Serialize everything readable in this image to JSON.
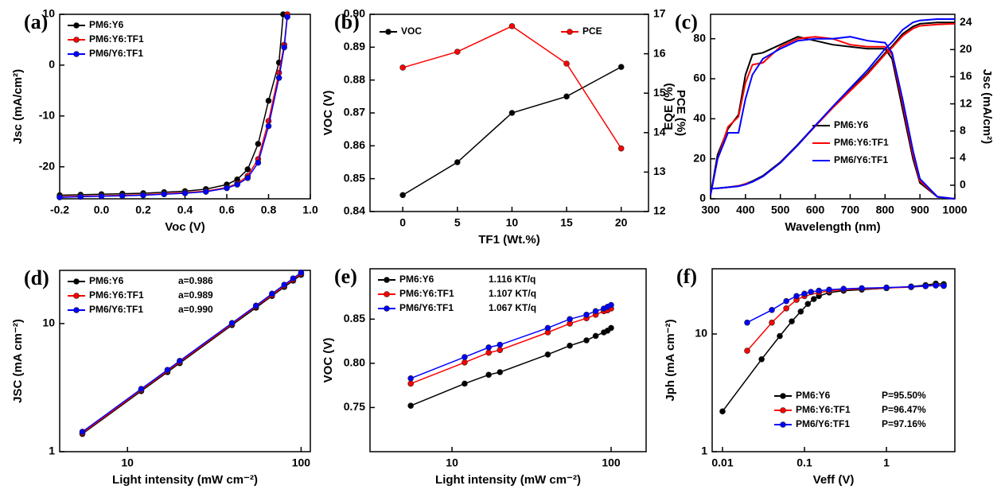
{
  "chart_data": [
    {
      "type": "line",
      "panel": "(a)",
      "xlabel": "Voc (V)",
      "ylabel": "Jsc (mA/cm²)",
      "markers": true,
      "legend": "upper left",
      "xlim": [
        -0.2,
        1.0
      ],
      "ylim": [
        -26.3,
        10
      ],
      "xticks": [
        -0.2,
        {
          "value": 0,
          "label": "0.0"
        },
        0.2,
        0.4,
        0.6,
        0.8,
        {
          "value": 1,
          "label": "1.0"
        }
      ],
      "yticks": [
        -20,
        -10,
        0,
        10
      ],
      "series": [
        {
          "name": "PM6:Y6",
          "color": "#000000",
          "x": [
            -0.2,
            -0.1,
            0,
            0.1,
            0.2,
            0.3,
            0.4,
            0.5,
            0.6,
            0.65,
            0.7,
            0.75,
            0.8,
            0.85,
            0.87
          ],
          "values": [
            -25.6,
            -25.5,
            -25.4,
            -25.3,
            -25.2,
            -25.0,
            -24.8,
            -24.4,
            -23.5,
            -22.5,
            -20.5,
            -15.5,
            -7,
            0.5,
            10
          ]
        },
        {
          "name": "PM6:Y6:TF1",
          "color": "#ff0000",
          "x": [
            -0.2,
            -0.1,
            0,
            0.1,
            0.2,
            0.3,
            0.4,
            0.5,
            0.6,
            0.65,
            0.7,
            0.75,
            0.8,
            0.85,
            0.875,
            0.89
          ],
          "values": [
            -25.9,
            -25.8,
            -25.7,
            -25.6,
            -25.5,
            -25.3,
            -25.1,
            -24.8,
            -24.1,
            -23.3,
            -21.8,
            -18.5,
            -11,
            -1.5,
            4,
            10
          ]
        },
        {
          "name": "PM6/Y6:TF1",
          "color": "#0000ff",
          "x": [
            -0.2,
            -0.1,
            0,
            0.1,
            0.2,
            0.3,
            0.4,
            0.5,
            0.6,
            0.65,
            0.7,
            0.75,
            0.8,
            0.85,
            0.875,
            0.89
          ],
          "values": [
            -26.0,
            -25.9,
            -25.8,
            -25.7,
            -25.6,
            -25.4,
            -25.2,
            -24.9,
            -24.2,
            -23.5,
            -22.2,
            -19.2,
            -12,
            -2.5,
            3.5,
            9.5
          ]
        }
      ]
    },
    {
      "type": "line",
      "panel": "(b)",
      "xlabel": "TF1 (Wt.%)",
      "ylabel": "VOC (V)",
      "y2label": "PCE (%)",
      "markers": true,
      "legend": "top",
      "x": [
        0,
        5,
        10,
        15,
        20
      ],
      "xlim": [
        -3,
        22.5
      ],
      "ylim": [
        0.84,
        0.9
      ],
      "y2lim": [
        12,
        17
      ],
      "xticks": [
        0,
        5,
        10,
        15,
        20
      ],
      "yticks": [
        0.84,
        0.85,
        0.86,
        0.87,
        0.88,
        0.89,
        {
          "value": 0.9,
          "label": "0.90"
        }
      ],
      "y2ticks": [
        12,
        13,
        14,
        15,
        16,
        17
      ],
      "series": [
        {
          "name": "VOC",
          "color": "#000000",
          "values": [
            0.845,
            0.855,
            0.87,
            0.875,
            0.884
          ]
        },
        {
          "name": "PCE",
          "color": "#ff0000",
          "axis": "y2",
          "values": [
            15.65,
            16.05,
            16.7,
            15.75,
            13.6
          ]
        }
      ]
    },
    {
      "type": "line",
      "panel": "(c)",
      "xlabel": "Wavelength (nm)",
      "ylabel": "EQE (%)",
      "y2label": "Jsc (mA/cm²)",
      "markers": false,
      "legend": "center right",
      "x": [
        300,
        320,
        350,
        380,
        400,
        420,
        450,
        500,
        550,
        600,
        650,
        700,
        750,
        800,
        820,
        850,
        880,
        900,
        950,
        1000
      ],
      "xlim": [
        300,
        1000
      ],
      "ylim": [
        0,
        92.2
      ],
      "y2lim": [
        -2,
        25.2
      ],
      "xticks": [
        300,
        400,
        500,
        600,
        700,
        800,
        900,
        1000
      ],
      "yticks": [
        0,
        20,
        40,
        60,
        80
      ],
      "y2ticks": [
        0,
        4,
        8,
        12,
        16,
        20,
        24
      ],
      "series": [
        {
          "name": "PM6:Y6",
          "color": "#000000",
          "values": [
            2,
            22,
            35,
            42,
            62,
            72,
            73,
            77,
            81,
            79,
            77,
            76,
            75,
            75,
            70,
            45,
            20,
            8,
            1,
            0
          ],
          "jsc": [
            -0.5,
            -0.45,
            -0.3,
            -0.1,
            0.2,
            0.6,
            1.4,
            3.4,
            6,
            8.8,
            11.5,
            14,
            16.6,
            19.5,
            20.5,
            22.3,
            23.4,
            23.8,
            24,
            24
          ]
        },
        {
          "name": "PM6:Y6:TF1",
          "color": "#ff0000",
          "values": [
            2,
            20,
            36,
            41,
            58,
            67,
            68,
            76,
            80,
            81,
            80,
            77,
            76,
            76,
            72,
            48,
            22,
            9,
            1,
            0
          ],
          "jsc": [
            -0.5,
            -0.45,
            -0.3,
            -0.1,
            0.2,
            0.5,
            1.3,
            3.3,
            5.9,
            8.7,
            11.4,
            13.9,
            16.4,
            19.3,
            20.3,
            22,
            23.1,
            23.5,
            23.7,
            23.8
          ]
        },
        {
          "name": "PM6/Y6:TF1",
          "color": "#0000ff",
          "values": [
            2,
            20,
            33,
            33,
            50,
            62,
            70,
            75,
            79,
            80,
            80,
            81,
            79,
            78,
            73,
            50,
            24,
            10,
            1,
            0
          ],
          "jsc": [
            -0.5,
            -0.45,
            -0.3,
            -0.15,
            0.1,
            0.5,
            1.3,
            3.3,
            5.9,
            8.8,
            11.6,
            14.3,
            17,
            20.1,
            21.1,
            22.9,
            24,
            24.3,
            24.5,
            24.5
          ]
        }
      ]
    },
    {
      "type": "line",
      "panel": "(d)",
      "xlabel": "Light intensity (mW cm⁻²)",
      "ylabel": "JSC (mA cm⁻²)",
      "markers": true,
      "legend": "upper left",
      "xscale": "log",
      "yscale": "log",
      "xlim": [
        4.07,
        113
      ],
      "ylim": [
        1,
        26
      ],
      "xticks": [
        10,
        100
      ],
      "yticks": [
        1,
        10
      ],
      "series": [
        {
          "name": "PM6:Y6",
          "fit": "a=0.986",
          "color": "#000000",
          "x": [
            5.5,
            12,
            17,
            20,
            40,
            55,
            68,
            80,
            90,
            100
          ],
          "values": [
            1.375,
            2.97,
            4.18,
            4.91,
            9.73,
            13.3,
            16.4,
            19.3,
            21.6,
            24
          ]
        },
        {
          "name": "PM6:Y6:TF1",
          "fit": "a=0.989",
          "color": "#ff0000",
          "x": [
            5.5,
            12,
            17,
            20,
            40,
            55,
            68,
            80,
            90,
            100
          ],
          "values": [
            1.4,
            3.03,
            4.27,
            5.01,
            9.92,
            13.6,
            16.7,
            19.7,
            22.0,
            24.5
          ]
        },
        {
          "name": "PM6/Y6:TF1",
          "fit": "a=0.990",
          "color": "#0000ff",
          "x": [
            5.5,
            12,
            17,
            20,
            40,
            55,
            68,
            80,
            90,
            100
          ],
          "values": [
            1.43,
            3.09,
            4.35,
            5.11,
            10.1,
            13.8,
            17.1,
            20.1,
            22.5,
            25.0
          ]
        }
      ]
    },
    {
      "type": "line",
      "panel": "(e)",
      "xlabel": "Light intensity (mW cm⁻²)",
      "ylabel": "VOC (V)",
      "markers": true,
      "legend": "upper left",
      "xscale": "log",
      "xlim": [
        3.05,
        166
      ],
      "ylim": [
        0.7,
        0.907
      ],
      "xticks": [
        10,
        100
      ],
      "yticks": [
        0.75,
        {
          "value": 0.8,
          "label": "0.80"
        },
        0.85
      ],
      "series": [
        {
          "name": "PM6:Y6",
          "fit": "1.116 KT/q",
          "color": "#000000",
          "x": [
            5.5,
            12,
            17,
            20,
            40,
            55,
            70,
            80,
            90,
            95,
            100
          ],
          "values": [
            0.752,
            0.777,
            0.787,
            0.79,
            0.81,
            0.82,
            0.826,
            0.831,
            0.835,
            0.837,
            0.84
          ]
        },
        {
          "name": "PM6:Y6:TF1",
          "fit": "1.107 KT/q",
          "color": "#ff0000",
          "x": [
            5.5,
            12,
            17,
            20,
            40,
            55,
            70,
            80,
            90,
            95,
            100
          ],
          "values": [
            0.777,
            0.801,
            0.812,
            0.815,
            0.835,
            0.845,
            0.851,
            0.855,
            0.859,
            0.86,
            0.862
          ]
        },
        {
          "name": "PM6/Y6:TF1",
          "fit": "1.067 KT/q",
          "color": "#0000ff",
          "x": [
            5.5,
            12,
            17,
            20,
            40,
            55,
            70,
            80,
            90,
            95,
            100
          ],
          "values": [
            0.783,
            0.807,
            0.818,
            0.821,
            0.84,
            0.85,
            0.855,
            0.859,
            0.862,
            0.864,
            0.866
          ]
        }
      ]
    },
    {
      "type": "line",
      "panel": "(f)",
      "xlabel": "Veff (V)",
      "ylabel": "Jph (mA cm⁻²)",
      "markers": true,
      "legend": "lower right",
      "xscale": "log",
      "yscale": "log",
      "xlim": [
        0.00748,
        6.83
      ],
      "ylim": [
        1,
        35.8
      ],
      "xticks": [
        0.01,
        0.1,
        1
      ],
      "yticks": [
        1,
        10
      ],
      "series": [
        {
          "name": "PM6:Y6",
          "fit": "P=95.50%",
          "color": "#000000",
          "x": [
            0.01,
            0.03,
            0.05,
            0.07,
            0.09,
            0.11,
            0.13,
            0.15,
            0.2,
            0.3,
            0.5,
            1,
            2,
            3,
            4,
            5
          ],
          "values": [
            2.2,
            6.1,
            9.6,
            12.8,
            15.5,
            18,
            19.8,
            21,
            22.5,
            23.3,
            23.8,
            24.5,
            25.3,
            26,
            26.8,
            26.5
          ]
        },
        {
          "name": "PM6:Y6:TF1",
          "fit": "P=96.47%",
          "color": "#ff0000",
          "x": [
            0.02,
            0.04,
            0.06,
            0.08,
            0.1,
            0.15,
            0.2,
            0.3,
            0.5,
            1,
            2,
            3,
            4,
            5
          ],
          "values": [
            7.2,
            12.5,
            16.5,
            19.5,
            21,
            22.5,
            23.2,
            23.8,
            24.2,
            24.6,
            25,
            25.5,
            26,
            25.8
          ]
        },
        {
          "name": "PM6/Y6:TF1",
          "fit": "P=97.16%",
          "color": "#0000ff",
          "x": [
            0.02,
            0.04,
            0.06,
            0.08,
            0.1,
            0.12,
            0.15,
            0.2,
            0.3,
            0.5,
            1,
            2,
            3,
            4,
            5
          ],
          "values": [
            12.5,
            16,
            19,
            21,
            22,
            22.8,
            23.3,
            23.8,
            24.2,
            24.5,
            24.8,
            25.2,
            25.5,
            25.8,
            25.6
          ]
        }
      ]
    }
  ]
}
